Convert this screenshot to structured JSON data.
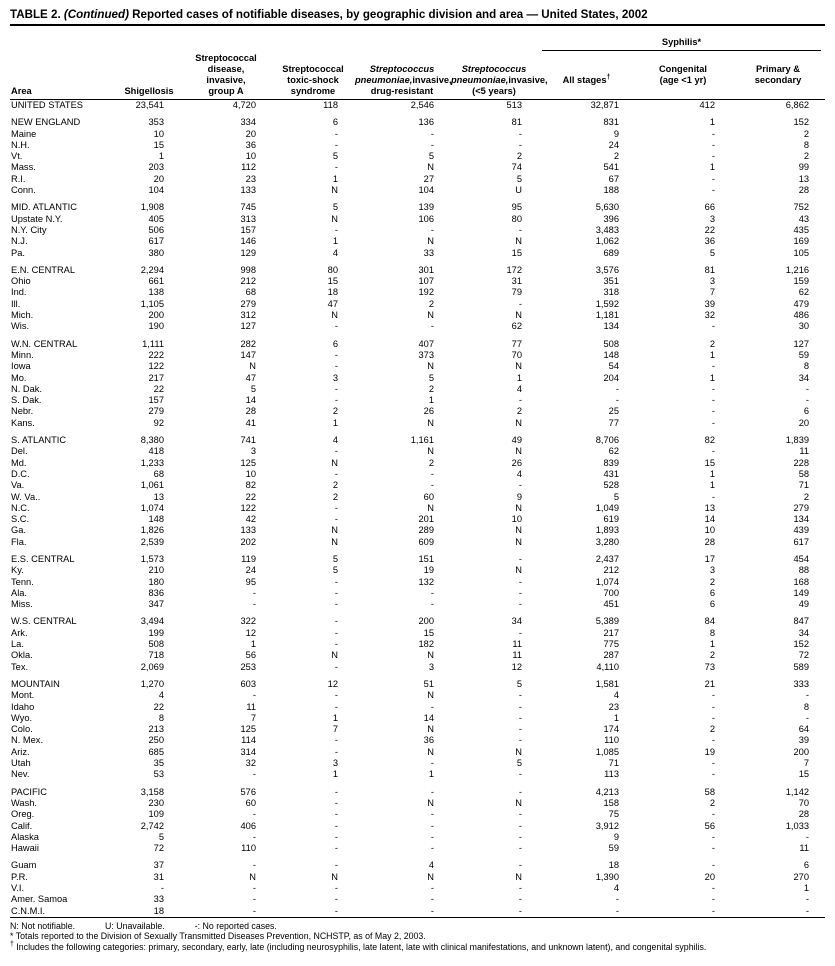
{
  "title": {
    "t1": "TABLE 2. ",
    "t2": "(Continued)",
    "t3": " Reported cases of notifiable diseases, by geographic division and area — United States, 2002"
  },
  "table": {
    "header": {
      "area": "Area",
      "shigellosis": "Shigellosis",
      "strep_group_a": "Streptococcal\ndisease,\ninvasive,\ngroup A",
      "toxic_shock": "Streptococcal\ntoxic-shock\nsyndrome",
      "pneumo_italic": "Streptococcus\npneumoniae,",
      "drug_resistant_rest": "invasive,\ndrug-resistant",
      "under5_rest": "invasive,\n(<5 years)",
      "syphilis": "Syphilis*",
      "all_stages": "All stages",
      "all_stages_sup": "†",
      "congenital": "Congenital\n(age <1 yr)",
      "primary_secondary": "Primary &\nsecondary"
    },
    "groups": [
      [
        [
          "UNITED STATES",
          "23,541",
          "4,720",
          "118",
          "2,546",
          "513",
          "32,871",
          "412",
          "6,862"
        ]
      ],
      [
        [
          "NEW ENGLAND",
          "353",
          "334",
          "6",
          "136",
          "81",
          "831",
          "1",
          "152"
        ],
        [
          "Maine",
          "10",
          "20",
          "-",
          "-",
          "-",
          "9",
          "-",
          "2"
        ],
        [
          "N.H.",
          "15",
          "36",
          "-",
          "-",
          "-",
          "24",
          "-",
          "8"
        ],
        [
          "Vt.",
          "1",
          "10",
          "5",
          "5",
          "2",
          "2",
          "-",
          "2"
        ],
        [
          "Mass.",
          "203",
          "112",
          "-",
          "N",
          "74",
          "541",
          "1",
          "99"
        ],
        [
          "R.I.",
          "20",
          "23",
          "1",
          "27",
          "5",
          "67",
          "-",
          "13"
        ],
        [
          "Conn.",
          "104",
          "133",
          "N",
          "104",
          "U",
          "188",
          "-",
          "28"
        ]
      ],
      [
        [
          "MID. ATLANTIC",
          "1,908",
          "745",
          "5",
          "139",
          "95",
          "5,630",
          "66",
          "752"
        ],
        [
          "Upstate N.Y.",
          "405",
          "313",
          "N",
          "106",
          "80",
          "396",
          "3",
          "43"
        ],
        [
          "N.Y. City",
          "506",
          "157",
          "-",
          "-",
          "-",
          "3,483",
          "22",
          "435"
        ],
        [
          "N.J.",
          "617",
          "146",
          "1",
          "N",
          "N",
          "1,062",
          "36",
          "169"
        ],
        [
          "Pa.",
          "380",
          "129",
          "4",
          "33",
          "15",
          "689",
          "5",
          "105"
        ]
      ],
      [
        [
          "E.N. CENTRAL",
          "2,294",
          "998",
          "80",
          "301",
          "172",
          "3,576",
          "81",
          "1,216"
        ],
        [
          "Ohio",
          "661",
          "212",
          "15",
          "107",
          "31",
          "351",
          "3",
          "159"
        ],
        [
          "Ind.",
          "138",
          "68",
          "18",
          "192",
          "79",
          "318",
          "7",
          "62"
        ],
        [
          "Ill.",
          "1,105",
          "279",
          "47",
          "2",
          "-",
          "1,592",
          "39",
          "479"
        ],
        [
          "Mich.",
          "200",
          "312",
          "N",
          "N",
          "N",
          "1,181",
          "32",
          "486"
        ],
        [
          "Wis.",
          "190",
          "127",
          "-",
          "-",
          "62",
          "134",
          "-",
          "30"
        ]
      ],
      [
        [
          "W.N. CENTRAL",
          "1,111",
          "282",
          "6",
          "407",
          "77",
          "508",
          "2",
          "127"
        ],
        [
          "Minn.",
          "222",
          "147",
          "-",
          "373",
          "70",
          "148",
          "1",
          "59"
        ],
        [
          "Iowa",
          "122",
          "N",
          "-",
          "N",
          "N",
          "54",
          "-",
          "8"
        ],
        [
          "Mo.",
          "217",
          "47",
          "3",
          "5",
          "1",
          "204",
          "1",
          "34"
        ],
        [
          "N. Dak.",
          "22",
          "5",
          "-",
          "2",
          "4",
          "-",
          "-",
          "-"
        ],
        [
          "S. Dak.",
          "157",
          "14",
          "-",
          "1",
          "-",
          "-",
          "-",
          "-"
        ],
        [
          "Nebr.",
          "279",
          "28",
          "2",
          "26",
          "2",
          "25",
          "-",
          "6"
        ],
        [
          "Kans.",
          "92",
          "41",
          "1",
          "N",
          "N",
          "77",
          "-",
          "20"
        ]
      ],
      [
        [
          "S. ATLANTIC",
          "8,380",
          "741",
          "4",
          "1,161",
          "49",
          "8,706",
          "82",
          "1,839"
        ],
        [
          "Del.",
          "418",
          "3",
          "-",
          "N",
          "N",
          "62",
          "-",
          "11"
        ],
        [
          "Md.",
          "1,233",
          "125",
          "N",
          "2",
          "26",
          "839",
          "15",
          "228"
        ],
        [
          "D.C.",
          "68",
          "10",
          "-",
          "-",
          "4",
          "431",
          "1",
          "58"
        ],
        [
          "Va.",
          "1,061",
          "82",
          "2",
          "-",
          "-",
          "528",
          "1",
          "71"
        ],
        [
          "W. Va..",
          "13",
          "22",
          "2",
          "60",
          "9",
          "5",
          "-",
          "2"
        ],
        [
          "N.C.",
          "1,074",
          "122",
          "-",
          "N",
          "N",
          "1,049",
          "13",
          "279"
        ],
        [
          "S.C.",
          "148",
          "42",
          "-",
          "201",
          "10",
          "619",
          "14",
          "134"
        ],
        [
          "Ga.",
          "1,826",
          "133",
          "N",
          "289",
          "N",
          "1,893",
          "10",
          "439"
        ],
        [
          "Fla.",
          "2,539",
          "202",
          "N",
          "609",
          "N",
          "3,280",
          "28",
          "617"
        ]
      ],
      [
        [
          "E.S. CENTRAL",
          "1,573",
          "119",
          "5",
          "151",
          "-",
          "2,437",
          "17",
          "454"
        ],
        [
          "Ky.",
          "210",
          "24",
          "5",
          "19",
          "N",
          "212",
          "3",
          "88"
        ],
        [
          "Tenn.",
          "180",
          "95",
          "-",
          "132",
          "-",
          "1,074",
          "2",
          "168"
        ],
        [
          "Ala.",
          "836",
          "-",
          "-",
          "-",
          "-",
          "700",
          "6",
          "149"
        ],
        [
          "Miss.",
          "347",
          "-",
          "-",
          "-",
          "-",
          "451",
          "6",
          "49"
        ]
      ],
      [
        [
          "W.S. CENTRAL",
          "3,494",
          "322",
          "-",
          "200",
          "34",
          "5,389",
          "84",
          "847"
        ],
        [
          "Ark.",
          "199",
          "12",
          "-",
          "15",
          "-",
          "217",
          "8",
          "34"
        ],
        [
          "La.",
          "508",
          "1",
          "-",
          "182",
          "11",
          "775",
          "1",
          "152"
        ],
        [
          "Okla.",
          "718",
          "56",
          "N",
          "N",
          "11",
          "287",
          "2",
          "72"
        ],
        [
          "Tex.",
          "2,069",
          "253",
          "-",
          "3",
          "12",
          "4,110",
          "73",
          "589"
        ]
      ],
      [
        [
          "MOUNTAIN",
          "1,270",
          "603",
          "12",
          "51",
          "5",
          "1,581",
          "21",
          "333"
        ],
        [
          "Mont.",
          "4",
          "-",
          "-",
          "N",
          "-",
          "4",
          "-",
          "-"
        ],
        [
          "Idaho",
          "22",
          "11",
          "-",
          "-",
          "-",
          "23",
          "-",
          "8"
        ],
        [
          "Wyo.",
          "8",
          "7",
          "1",
          "14",
          "-",
          "1",
          "-",
          "-"
        ],
        [
          "Colo.",
          "213",
          "125",
          "7",
          "N",
          "-",
          "174",
          "2",
          "64"
        ],
        [
          "N. Mex.",
          "250",
          "114",
          "-",
          "36",
          "-",
          "110",
          "-",
          "39"
        ],
        [
          "Ariz.",
          "685",
          "314",
          "-",
          "N",
          "N",
          "1,085",
          "19",
          "200"
        ],
        [
          "Utah",
          "35",
          "32",
          "3",
          "-",
          "5",
          "71",
          "-",
          "7"
        ],
        [
          "Nev.",
          "53",
          "-",
          "1",
          "1",
          "-",
          "113",
          "-",
          "15"
        ]
      ],
      [
        [
          "PACIFIC",
          "3,158",
          "576",
          "-",
          "-",
          "-",
          "4,213",
          "58",
          "1,142"
        ],
        [
          "Wash.",
          "230",
          "60",
          "-",
          "N",
          "N",
          "158",
          "2",
          "70"
        ],
        [
          "Oreg.",
          "109",
          "-",
          "-",
          "-",
          "-",
          "75",
          "-",
          "28"
        ],
        [
          "Calif.",
          "2,742",
          "406",
          "-",
          "-",
          "-",
          "3,912",
          "56",
          "1,033"
        ],
        [
          "Alaska",
          "5",
          "-",
          "-",
          "-",
          "-",
          "9",
          "-",
          "-"
        ],
        [
          "Hawaii",
          "72",
          "110",
          "-",
          "-",
          "-",
          "59",
          "-",
          "11"
        ]
      ],
      [
        [
          "Guam",
          "37",
          "-",
          "-",
          "4",
          "-",
          "18",
          "-",
          "6"
        ],
        [
          "P.R.",
          "31",
          "N",
          "N",
          "N",
          "N",
          "1,390",
          "20",
          "270"
        ],
        [
          "V.I.",
          "-",
          "-",
          "-",
          "-",
          "-",
          "4",
          "-",
          "1"
        ],
        [
          "Amer. Samoa",
          "33",
          "-",
          "-",
          "-",
          "-",
          "-",
          "-",
          "-"
        ],
        [
          "C.N.M.I.",
          "18",
          "-",
          "-",
          "-",
          "-",
          "-",
          "-",
          "-"
        ]
      ]
    ]
  },
  "footnotes": {
    "legend": [
      "N: Not notifiable.",
      "U: Unavailable.",
      "-: No reported cases."
    ],
    "star": "* Totals reported to the Division of Sexually Transmitted Diseases Prevention, NCHSTP, as of May 2, 2003.",
    "dagger_sup": "†",
    "dagger": " Includes the following categories: primary, secondary, early, late (including neurosyphilis, late latent, late with clinical manifestations, and unknown latent), and congenital syphilis."
  }
}
